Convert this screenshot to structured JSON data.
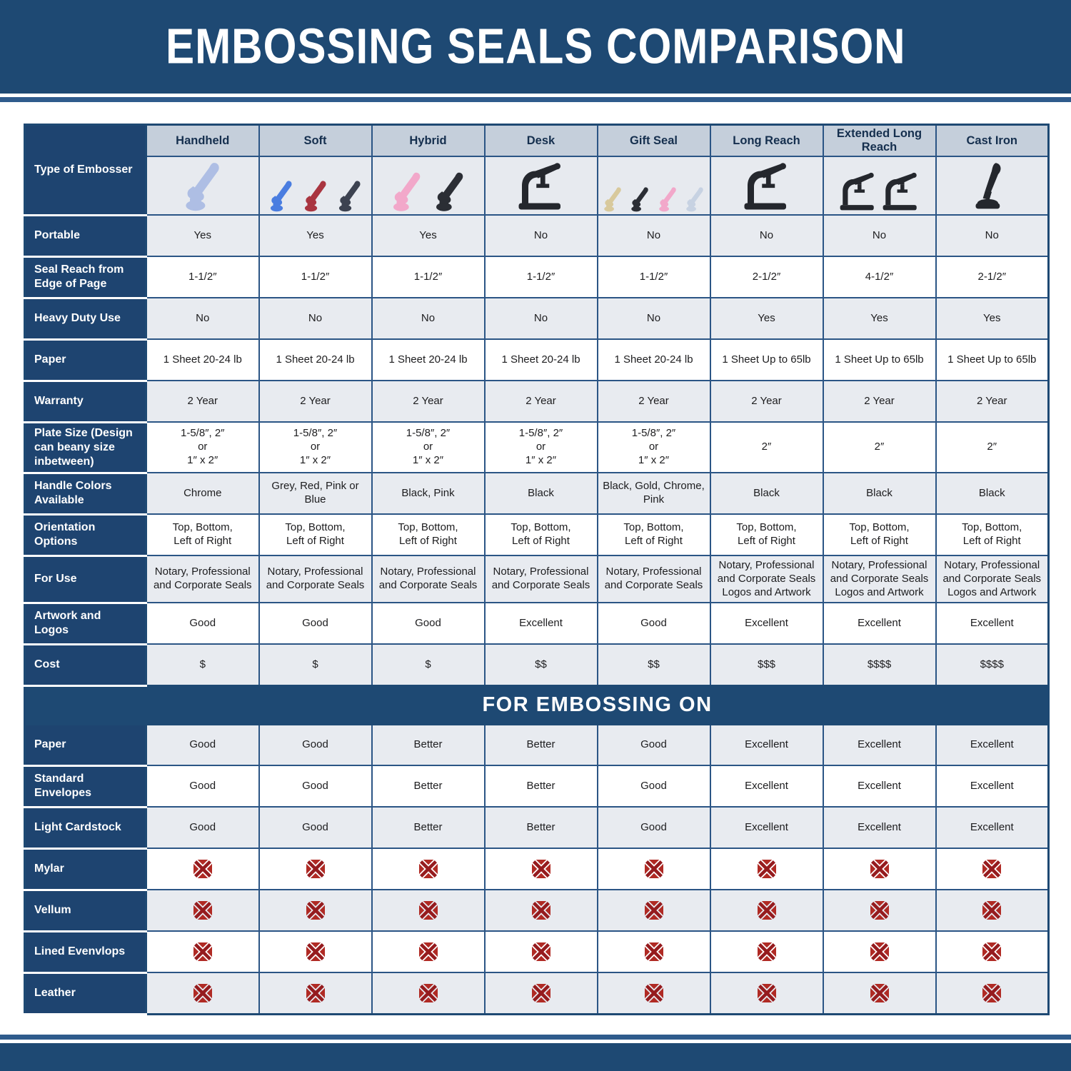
{
  "title": "EMBOSSING SEALS COMPARISON",
  "colors": {
    "dark_blue": "#1E4973",
    "label_cell_blue": "#1E4470",
    "column_header_bg": "#C5CFDB",
    "row_gray": "#E8EBF0",
    "row_white": "#FFFFFF",
    "inner_border_blue": "#2B5585",
    "x_icon_red_dark": "#951B1E",
    "x_icon_red": "#B02A24"
  },
  "table": {
    "corner_label": "Type of Embosser",
    "columns": [
      {
        "name": "Handheld",
        "image": {
          "icon": "handheld-embosser-photo",
          "style": "clamp",
          "colors": [
            "#AEBEE4"
          ]
        }
      },
      {
        "name": "Soft",
        "image": {
          "icon": "soft-embosser-photo",
          "style": "clamp",
          "colors": [
            "#4A7DE0",
            "#A93540",
            "#3C4250"
          ]
        }
      },
      {
        "name": "Hybrid",
        "image": {
          "icon": "hybrid-embosser-photo",
          "style": "clamp",
          "colors": [
            "#F2A8CA",
            "#2B2E35"
          ]
        }
      },
      {
        "name": "Desk",
        "image": {
          "icon": "desk-embosser-photo",
          "style": "press",
          "colors": [
            "#24272D"
          ]
        }
      },
      {
        "name": "Gift Seal",
        "image": {
          "icon": "gift-seal-embosser-photo",
          "style": "clamp",
          "colors": [
            "#D8C99C",
            "#2B2E35",
            "#F2A8CA",
            "#C7D2E2"
          ]
        }
      },
      {
        "name": "Long Reach",
        "image": {
          "icon": "long-reach-embosser-photo",
          "style": "press",
          "colors": [
            "#24272D"
          ]
        }
      },
      {
        "name": "Extended Long Reach",
        "image": {
          "icon": "extended-long-reach-embosser-photo",
          "style": "press",
          "colors": [
            "#24272D",
            "#24272D"
          ]
        }
      },
      {
        "name": "Cast Iron",
        "image": {
          "icon": "cast-iron-embosser-photo",
          "style": "lever",
          "colors": [
            "#24272D"
          ]
        }
      }
    ],
    "spec_rows": [
      {
        "label": "Portable",
        "values": [
          "Yes",
          "Yes",
          "Yes",
          "No",
          "No",
          "No",
          "No",
          "No"
        ]
      },
      {
        "label": "Seal Reach from Edge of Page",
        "values": [
          "1-1/2″",
          "1-1/2″",
          "1-1/2″",
          "1-1/2″",
          "1-1/2″",
          "2-1/2″",
          "4-1/2″",
          "2-1/2″"
        ]
      },
      {
        "label": "Heavy Duty Use",
        "values": [
          "No",
          "No",
          "No",
          "No",
          "No",
          "Yes",
          "Yes",
          "Yes"
        ]
      },
      {
        "label": "Paper",
        "values": [
          "1 Sheet 20-24 lb",
          "1 Sheet 20-24 lb",
          "1 Sheet 20-24 lb",
          "1 Sheet 20-24 lb",
          "1 Sheet 20-24 lb",
          "1 Sheet Up to 65lb",
          "1 Sheet Up to 65lb",
          "1 Sheet Up to 65lb"
        ]
      },
      {
        "label": "Warranty",
        "values": [
          "2 Year",
          "2 Year",
          "2 Year",
          "2 Year",
          "2 Year",
          "2 Year",
          "2 Year",
          "2 Year"
        ]
      },
      {
        "label": "Plate Size (Design can beany size inbetween)",
        "values": [
          "1-5/8″, 2″\nor\n1″ x 2″",
          "1-5/8″, 2″\nor\n1″ x 2″",
          "1-5/8″, 2″\nor\n1″ x 2″",
          "1-5/8″, 2″\nor\n1″ x 2″",
          "1-5/8″, 2″\nor\n1″ x 2″",
          "2″",
          "2″",
          "2″"
        ]
      },
      {
        "label": "Handle Colors Available",
        "values": [
          "Chrome",
          "Grey, Red, Pink or Blue",
          "Black, Pink",
          "Black",
          "Black, Gold, Chrome, Pink",
          "Black",
          "Black",
          "Black"
        ]
      },
      {
        "label": "Orientation Options",
        "values": [
          "Top, Bottom,\nLeft of Right",
          "Top, Bottom,\nLeft of Right",
          "Top, Bottom,\nLeft of Right",
          "Top, Bottom,\nLeft of Right",
          "Top, Bottom,\nLeft of Right",
          "Top, Bottom,\nLeft of Right",
          "Top, Bottom,\nLeft of Right",
          "Top, Bottom,\nLeft of Right"
        ]
      },
      {
        "label": "For Use",
        "values": [
          "Notary, Professional\nand Corporate Seals",
          "Notary, Professional\nand Corporate Seals",
          "Notary, Professional\nand Corporate Seals",
          "Notary, Professional\nand Corporate Seals",
          "Notary, Professional\nand Corporate Seals",
          "Notary, Professional\nand Corporate Seals\nLogos and Artwork",
          "Notary, Professional\nand Corporate Seals\nLogos and Artwork",
          "Notary, Professional\nand Corporate Seals\nLogos and Artwork"
        ]
      },
      {
        "label": "Artwork and Logos",
        "values": [
          "Good",
          "Good",
          "Good",
          "Excellent",
          "Good",
          "Excellent",
          "Excellent",
          "Excellent"
        ]
      },
      {
        "label": "Cost",
        "values": [
          "$",
          "$",
          "$",
          "$$",
          "$$",
          "$$$",
          "$$$$",
          "$$$$"
        ]
      }
    ],
    "embossing_header": "FOR EMBOSSING ON",
    "embossing_rows": [
      {
        "label": "Paper",
        "values": [
          "Good",
          "Good",
          "Better",
          "Better",
          "Good",
          "Excellent",
          "Excellent",
          "Excellent"
        ]
      },
      {
        "label": "Standard Envelopes",
        "values": [
          "Good",
          "Good",
          "Better",
          "Better",
          "Good",
          "Excellent",
          "Excellent",
          "Excellent"
        ]
      },
      {
        "label": "Light Cardstock",
        "values": [
          "Good",
          "Good",
          "Better",
          "Better",
          "Good",
          "Excellent",
          "Excellent",
          "Excellent"
        ]
      },
      {
        "label": "Mylar",
        "values": [
          "✗",
          "✗",
          "✗",
          "✗",
          "✗",
          "✗",
          "✗",
          "✗"
        ]
      },
      {
        "label": "Vellum",
        "values": [
          "✗",
          "✗",
          "✗",
          "✗",
          "✗",
          "✗",
          "✗",
          "✗"
        ]
      },
      {
        "label": "Lined Evenvlops",
        "values": [
          "✗",
          "✗",
          "✗",
          "✗",
          "✗",
          "✗",
          "✗",
          "✗"
        ]
      },
      {
        "label": "Leather",
        "values": [
          "✗",
          "✗",
          "✗",
          "✗",
          "✗",
          "✗",
          "✗",
          "✗"
        ]
      }
    ]
  }
}
